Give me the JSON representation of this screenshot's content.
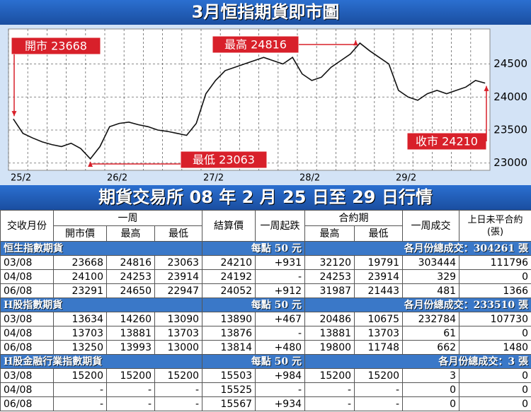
{
  "chart_data": {
    "type": "line",
    "title": "3月恒指期貨即市圖",
    "categories": [
      "25/2",
      null,
      null,
      null,
      null,
      null,
      null,
      null,
      null,
      null,
      "26/2",
      null,
      null,
      null,
      null,
      null,
      null,
      null,
      null,
      null,
      "27/2",
      null,
      null,
      null,
      null,
      null,
      null,
      null,
      null,
      null,
      "28/2",
      null,
      null,
      null,
      null,
      null,
      null,
      null,
      null,
      null,
      "29/2",
      null,
      null,
      null,
      null,
      null,
      null,
      null,
      null,
      null
    ],
    "series": [
      {
        "color": "#111111",
        "values": [
          23668,
          23450,
          23380,
          23320,
          23280,
          23250,
          23300,
          23220,
          23063,
          23250,
          23550,
          23600,
          23620,
          23580,
          23550,
          23500,
          23480,
          23450,
          23420,
          23600,
          24050,
          24250,
          24400,
          24450,
          24500,
          24550,
          24600,
          24550,
          24500,
          24600,
          24350,
          24250,
          24300,
          24450,
          24550,
          24650,
          24816,
          24700,
          24600,
          24500,
          24100,
          24000,
          23950,
          24050,
          24100,
          24050,
          24100,
          24150,
          24250,
          24210
        ]
      }
    ],
    "ylim": [
      22890,
      25030
    ],
    "yticks": [
      23000,
      23500,
      24000,
      24500
    ],
    "grid": true,
    "annotations": [
      "開市 23668",
      "最高 24816",
      "最低 23063",
      "收市 24210"
    ]
  },
  "table": {
    "title": "期貨交易所 08 年 2 月 25 日至 29 日行情",
    "header_row1": [
      "交收月份",
      "一周",
      "結算價",
      "一周起跌",
      "合約期",
      "一周成交",
      "上日未平合約(張)"
    ],
    "header_row2": [
      "開市價",
      "最高",
      "最低",
      "最高",
      "最低"
    ],
    "sections": [
      {
        "name": "恒生指數期貨",
        "unit": "每點 50 元",
        "total": "各月份總成交：304261 張",
        "rows": [
          [
            "03/08",
            "23668",
            "24816",
            "23063",
            "24210",
            "+931",
            "32120",
            "19791",
            "303444",
            "111796"
          ],
          [
            "04/08",
            "24100",
            "24253",
            "23914",
            "24192",
            "-",
            "24253",
            "23914",
            "329",
            "0"
          ],
          [
            "06/08",
            "23291",
            "24650",
            "22947",
            "24052",
            "+912",
            "31987",
            "21443",
            "481",
            "1366"
          ]
        ]
      },
      {
        "name": "H股指數期貨",
        "unit": "每點 50 元",
        "total": "各月份總成交：233510 張",
        "rows": [
          [
            "03/08",
            "13634",
            "14260",
            "13090",
            "13890",
            "+467",
            "20486",
            "10675",
            "232784",
            "107730"
          ],
          [
            "04/08",
            "13703",
            "13881",
            "13703",
            "13876",
            "-",
            "13881",
            "13703",
            "61",
            "0"
          ],
          [
            "06/08",
            "13250",
            "13993",
            "13000",
            "13814",
            "+480",
            "19800",
            "11748",
            "662",
            "1480"
          ]
        ]
      },
      {
        "name": "H股金融行業指數期貨",
        "unit": "每點 50 元",
        "total": "各月份總成交：3 張",
        "rows": [
          [
            "03/08",
            "15200",
            "15200",
            "15200",
            "15503",
            "+984",
            "15200",
            "15200",
            "3",
            "0"
          ],
          [
            "04/08",
            "-",
            "-",
            "-",
            "15525",
            "-",
            "-",
            "-",
            "0",
            "0"
          ],
          [
            "06/08",
            "-",
            "-",
            "-",
            "15567",
            "+934",
            "-",
            "-",
            "0",
            "0"
          ]
        ]
      }
    ]
  }
}
